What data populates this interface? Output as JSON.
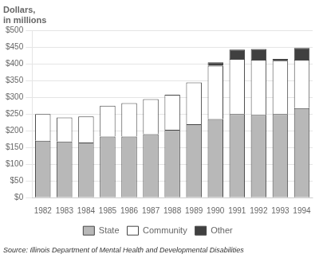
{
  "chart_data": {
    "type": "bar",
    "stacked": true,
    "ylabel": [
      "Dollars,",
      "in millions"
    ],
    "annotations": [
      "Source: Illinois Department of Mental Health and Developmental Disabilities"
    ],
    "categories": [
      "1982",
      "1983",
      "1984",
      "1985",
      "1986",
      "1987",
      "1988",
      "1989",
      "1990",
      "1991",
      "1992",
      "1993",
      "1994"
    ],
    "series": [
      {
        "name": "State",
        "color": "#b8b8b8",
        "values": [
          170,
          168,
          165,
          183,
          183,
          190,
          203,
          220,
          235,
          250,
          248,
          250,
          268
        ]
      },
      {
        "name": "Community",
        "color": "#ffffff",
        "values": [
          80,
          72,
          78,
          92,
          100,
          105,
          105,
          125,
          160,
          165,
          165,
          160,
          145
        ]
      },
      {
        "name": "Other",
        "color": "#404040",
        "values": [
          0,
          0,
          0,
          0,
          0,
          0,
          0,
          0,
          10,
          28,
          32,
          5,
          35
        ]
      }
    ],
    "ylim": [
      0,
      500
    ],
    "yticks": [
      {
        "value": 0,
        "label": "$0"
      },
      {
        "value": 50,
        "label": "$50"
      },
      {
        "value": 100,
        "label": "$100"
      },
      {
        "value": 150,
        "label": "$150"
      },
      {
        "value": 200,
        "label": "$200"
      },
      {
        "value": 250,
        "label": "$250"
      },
      {
        "value": 300,
        "label": "$300"
      },
      {
        "value": 350,
        "label": "$350"
      },
      {
        "value": 400,
        "label": "$400"
      },
      {
        "value": 450,
        "label": "$450"
      },
      {
        "value": 500,
        "label": "$500"
      }
    ],
    "grid": true,
    "legend": "bottom"
  }
}
